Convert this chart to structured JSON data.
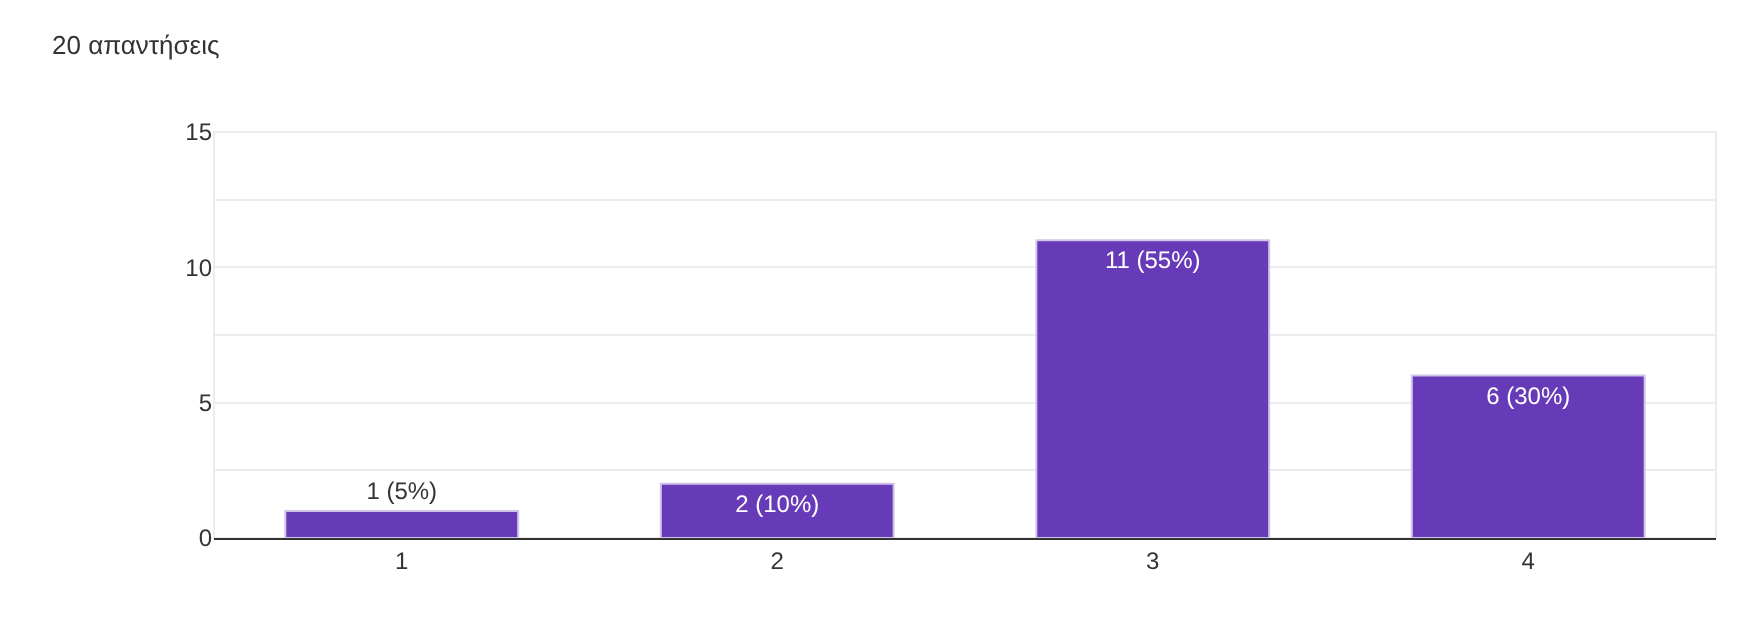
{
  "chart_data": {
    "type": "bar",
    "title": "20 απαντήσεις",
    "categories": [
      "1",
      "2",
      "3",
      "4"
    ],
    "values": [
      1,
      2,
      11,
      6
    ],
    "value_labels": [
      "1 (5%)",
      "2 (10%)",
      "11 (55%)",
      "6 (30%)"
    ],
    "color": "#673ab7",
    "ylim": [
      0,
      15
    ],
    "yticks": [
      0,
      {
        "value": 2.5,
        "label": null
      },
      5,
      {
        "value": 7.5,
        "label": null
      },
      10,
      {
        "value": 12.5,
        "label": null
      },
      15
    ],
    "grid": "y",
    "legend": false
  }
}
